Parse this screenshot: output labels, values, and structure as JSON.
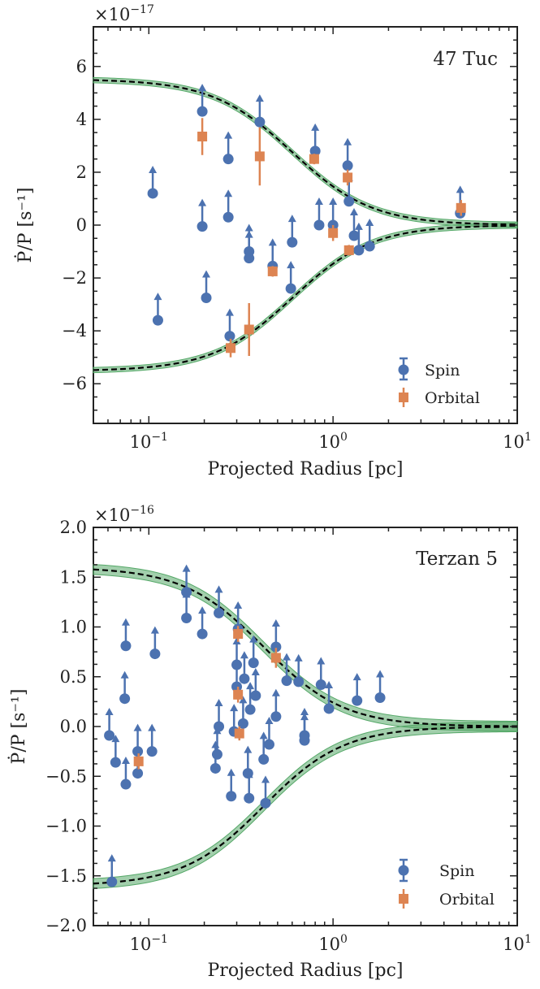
{
  "colors": {
    "spin": "#4c72b0",
    "orbital": "#dd8452",
    "band": "#55a868",
    "model": "#000000"
  },
  "chart_data": [
    {
      "type": "scatter",
      "title": "47 Tuc",
      "xlabel": "Projected Radius [pc]",
      "ylabel": "Ṗ/P [s⁻¹]",
      "x_scale": "log",
      "xlim": [
        0.05,
        10
      ],
      "ylim": [
        -7.5,
        7.5
      ],
      "y_multiplier_base": "×10",
      "y_multiplier_exp": "−17",
      "x_ticks": [
        0.1,
        1,
        10
      ],
      "x_tick_labels": [
        {
          "base": "10",
          "exp": "−1"
        },
        {
          "base": "10",
          "exp": "0"
        },
        {
          "base": "10",
          "exp": "1"
        }
      ],
      "y_ticks": [
        -6,
        -4,
        -2,
        0,
        2,
        4,
        6
      ],
      "y_tick_labels": [
        "−6",
        "−4",
        "−2",
        "0",
        "2",
        "4",
        "6"
      ],
      "legend_position": "lower-right",
      "model_amplitude": 5.52,
      "model_core_radius": 0.6,
      "band_width": 0.1,
      "series": [
        {
          "name": "Spin",
          "kind": "lower-limit",
          "points": [
            {
              "x": 0.105,
              "y": 1.2
            },
            {
              "x": 0.112,
              "y": -3.6
            },
            {
              "x": 0.195,
              "y": 4.3
            },
            {
              "x": 0.195,
              "y": -0.05
            },
            {
              "x": 0.205,
              "y": -2.75
            },
            {
              "x": 0.27,
              "y": 2.5
            },
            {
              "x": 0.27,
              "y": 0.3
            },
            {
              "x": 0.275,
              "y": -4.2
            },
            {
              "x": 0.35,
              "y": -1.0
            },
            {
              "x": 0.35,
              "y": -1.25
            },
            {
              "x": 0.4,
              "y": 3.9
            },
            {
              "x": 0.47,
              "y": -1.55
            },
            {
              "x": 0.59,
              "y": -2.4
            },
            {
              "x": 0.6,
              "y": -0.65
            },
            {
              "x": 0.8,
              "y": 2.8
            },
            {
              "x": 0.84,
              "y": 0.0
            },
            {
              "x": 1.0,
              "y": 0.0
            },
            {
              "x": 1.2,
              "y": 2.25
            },
            {
              "x": 1.22,
              "y": 0.9
            },
            {
              "x": 1.3,
              "y": -0.4
            },
            {
              "x": 1.38,
              "y": -0.95
            },
            {
              "x": 1.58,
              "y": -0.8
            },
            {
              "x": 4.9,
              "y": 0.45
            }
          ]
        },
        {
          "name": "Orbital",
          "kind": "error-bar",
          "points": [
            {
              "x": 0.195,
              "y": 3.35,
              "err": 0.7
            },
            {
              "x": 0.278,
              "y": -4.65,
              "err": 0.35
            },
            {
              "x": 0.35,
              "y": -3.95,
              "err": 1.0
            },
            {
              "x": 0.4,
              "y": 2.6,
              "err": 1.1
            },
            {
              "x": 0.47,
              "y": -1.75,
              "err": 0.2
            },
            {
              "x": 0.79,
              "y": 2.5,
              "err": 0.2
            },
            {
              "x": 1.0,
              "y": -0.3,
              "err": 0.3
            },
            {
              "x": 1.2,
              "y": 1.8,
              "err": 0.3
            },
            {
              "x": 1.22,
              "y": -0.95,
              "err": 0.2
            },
            {
              "x": 4.95,
              "y": 0.65,
              "err": 0.3
            }
          ]
        }
      ]
    },
    {
      "type": "scatter",
      "title": "Terzan 5",
      "xlabel": "Projected Radius [pc]",
      "ylabel": "Ṗ/P [s⁻¹]",
      "x_scale": "log",
      "xlim": [
        0.05,
        10
      ],
      "ylim": [
        -2.0,
        2.0
      ],
      "y_multiplier_base": "×10",
      "y_multiplier_exp": "−16",
      "x_ticks": [
        0.1,
        1,
        10
      ],
      "x_tick_labels": [
        {
          "base": "10",
          "exp": "−1"
        },
        {
          "base": "10",
          "exp": "0"
        },
        {
          "base": "10",
          "exp": "1"
        }
      ],
      "y_ticks": [
        -2.0,
        -1.5,
        -1.0,
        -0.5,
        0.0,
        0.5,
        1.0,
        1.5,
        2.0
      ],
      "y_tick_labels": [
        "−2.0",
        "−1.5",
        "−1.0",
        "−0.5",
        "0.0",
        "0.5",
        "1.0",
        "1.5",
        "2.0"
      ],
      "legend_position": "lower-right",
      "model_amplitude": 1.6,
      "model_core_radius": 0.42,
      "band_width": 0.05,
      "series": [
        {
          "name": "Spin",
          "kind": "lower-limit",
          "points": [
            {
              "x": 0.061,
              "y": -0.09
            },
            {
              "x": 0.063,
              "y": -1.56
            },
            {
              "x": 0.066,
              "y": -0.36
            },
            {
              "x": 0.074,
              "y": 0.28
            },
            {
              "x": 0.075,
              "y": 0.81
            },
            {
              "x": 0.075,
              "y": -0.58
            },
            {
              "x": 0.087,
              "y": -0.25
            },
            {
              "x": 0.087,
              "y": -0.47
            },
            {
              "x": 0.104,
              "y": -0.25
            },
            {
              "x": 0.108,
              "y": 0.73
            },
            {
              "x": 0.16,
              "y": 1.35
            },
            {
              "x": 0.16,
              "y": 1.09
            },
            {
              "x": 0.195,
              "y": 0.93
            },
            {
              "x": 0.23,
              "y": -0.42
            },
            {
              "x": 0.235,
              "y": -0.28
            },
            {
              "x": 0.24,
              "y": 0.0
            },
            {
              "x": 0.24,
              "y": 1.14
            },
            {
              "x": 0.28,
              "y": -0.7
            },
            {
              "x": 0.29,
              "y": -0.05
            },
            {
              "x": 0.3,
              "y": 0.62
            },
            {
              "x": 0.3,
              "y": 0.4
            },
            {
              "x": 0.305,
              "y": 0.98
            },
            {
              "x": 0.325,
              "y": 0.03
            },
            {
              "x": 0.33,
              "y": 0.48
            },
            {
              "x": 0.345,
              "y": -0.47
            },
            {
              "x": 0.35,
              "y": -0.72
            },
            {
              "x": 0.355,
              "y": 0.17
            },
            {
              "x": 0.37,
              "y": 0.64
            },
            {
              "x": 0.38,
              "y": 0.31
            },
            {
              "x": 0.42,
              "y": -0.33
            },
            {
              "x": 0.43,
              "y": -0.77
            },
            {
              "x": 0.45,
              "y": -0.18
            },
            {
              "x": 0.49,
              "y": 0.8
            },
            {
              "x": 0.49,
              "y": 0.1
            },
            {
              "x": 0.56,
              "y": 0.46
            },
            {
              "x": 0.65,
              "y": 0.45
            },
            {
              "x": 0.7,
              "y": -0.09
            },
            {
              "x": 0.7,
              "y": -0.14
            },
            {
              "x": 0.86,
              "y": 0.42
            },
            {
              "x": 0.95,
              "y": 0.18
            },
            {
              "x": 1.35,
              "y": 0.26
            },
            {
              "x": 1.8,
              "y": 0.29
            }
          ]
        },
        {
          "name": "Orbital",
          "kind": "error-bar",
          "points": [
            {
              "x": 0.088,
              "y": -0.35,
              "err": 0.08
            },
            {
              "x": 0.305,
              "y": 0.93,
              "err": 0.08
            },
            {
              "x": 0.305,
              "y": 0.32,
              "err": 0.08
            },
            {
              "x": 0.31,
              "y": -0.07,
              "err": 0.07
            },
            {
              "x": 0.49,
              "y": 0.69,
              "err": 0.1
            }
          ]
        }
      ]
    }
  ]
}
